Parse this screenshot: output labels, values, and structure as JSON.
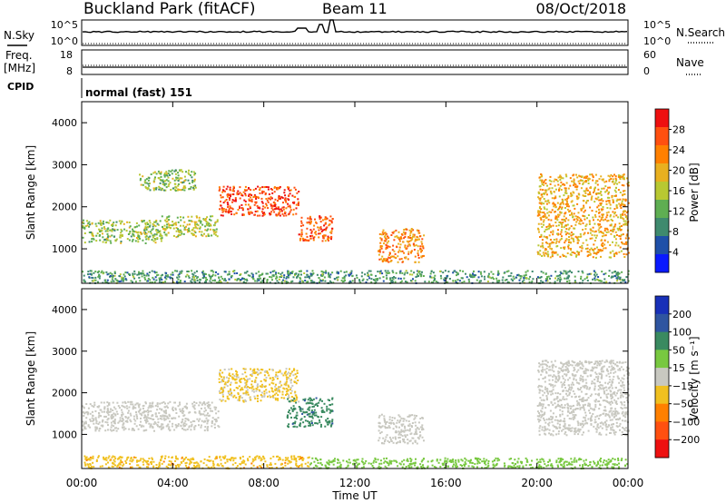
{
  "header": {
    "station": "Buckland Park (fitACF)",
    "beam": "Beam 11",
    "date": "08/Oct/2018"
  },
  "strips": {
    "nsky_label": "N.Sky",
    "nsky_ticks": [
      "10^5",
      "10^0"
    ],
    "nsearch_label": "N.Search",
    "nsearch_ticks": [
      "10^5",
      "10^0"
    ],
    "freq_label": "Freq.",
    "freq_unit": "[MHz]",
    "freq_ticks": [
      "18",
      "8"
    ],
    "nave_label": "Nave",
    "nave_ticks": [
      "60",
      "0"
    ],
    "cpid_label": "CPID",
    "cpid_value": "normal (fast) 151"
  },
  "chart_data": [
    {
      "type": "heatmap",
      "name": "power",
      "xlabel": "",
      "ylabel": "Slant Range [km]",
      "yticks": [
        "1000",
        "2000",
        "3000",
        "4000"
      ],
      "xlim": [
        0,
        24
      ],
      "ylim": [
        180,
        4500
      ],
      "colorbar_label": "Power [dB]",
      "colorbar_ticks": [
        "4",
        "8",
        "12",
        "16",
        "20",
        "24",
        "28"
      ],
      "colors": [
        "#0a1aff",
        "#1f50a8",
        "#3f8a6e",
        "#5fae52",
        "#b8c832",
        "#e8b020",
        "#ff8000",
        "#ff5010",
        "#ee1010"
      ],
      "echo_regions": [
        {
          "t": [
            0.0,
            3.5
          ],
          "r": [
            1150,
            1700
          ],
          "level": 14
        },
        {
          "t": [
            3.5,
            6.0
          ],
          "r": [
            1300,
            1800
          ],
          "level": 16
        },
        {
          "t": [
            6.0,
            9.5
          ],
          "r": [
            1800,
            2500
          ],
          "level": 27
        },
        {
          "t": [
            9.5,
            11.0
          ],
          "r": [
            1200,
            1800
          ],
          "level": 25
        },
        {
          "t": [
            2.5,
            5.0
          ],
          "r": [
            2400,
            2900
          ],
          "level": 14
        },
        {
          "t": [
            13.0,
            15.0
          ],
          "r": [
            700,
            1500
          ],
          "level": 22
        },
        {
          "t": [
            20.0,
            24.0
          ],
          "r": [
            800,
            2800
          ],
          "level": 20
        },
        {
          "t": [
            0.0,
            24.0
          ],
          "r": [
            200,
            500
          ],
          "level": 10
        }
      ]
    },
    {
      "type": "heatmap",
      "name": "velocity",
      "xlabel": "Time UT",
      "ylabel": "Slant Range [km]",
      "xticks": [
        "00:00",
        "04:00",
        "08:00",
        "12:00",
        "16:00",
        "20:00",
        "00:00"
      ],
      "yticks": [
        "1000",
        "2000",
        "3000",
        "4000"
      ],
      "xlim": [
        0,
        24
      ],
      "ylim": [
        180,
        4500
      ],
      "colorbar_label": "Velocity [m s⁻¹]",
      "colorbar_ticks": [
        "200",
        "100",
        "50",
        "15",
        "−15",
        "−50",
        "−100",
        "−200"
      ],
      "colors": [
        "#1830b8",
        "#2f55a0",
        "#3a8a60",
        "#78c840",
        "#c8c8c0",
        "#f0c020",
        "#ff8000",
        "#ff5010",
        "#ee1010"
      ],
      "echo_regions": [
        {
          "t": [
            0.0,
            6.0
          ],
          "r": [
            1100,
            1800
          ],
          "level": 0
        },
        {
          "t": [
            6.0,
            9.5
          ],
          "r": [
            1800,
            2600
          ],
          "level": -20
        },
        {
          "t": [
            9.0,
            11.0
          ],
          "r": [
            1200,
            1900
          ],
          "level": 90
        },
        {
          "t": [
            13.0,
            15.0
          ],
          "r": [
            800,
            1500
          ],
          "level": 0
        },
        {
          "t": [
            20.0,
            24.0
          ],
          "r": [
            1000,
            2800
          ],
          "level": 0
        },
        {
          "t": [
            0.0,
            10.0
          ],
          "r": [
            200,
            500
          ],
          "level": -40
        },
        {
          "t": [
            10.0,
            24.0
          ],
          "r": [
            200,
            450
          ],
          "level": 30
        }
      ]
    }
  ]
}
